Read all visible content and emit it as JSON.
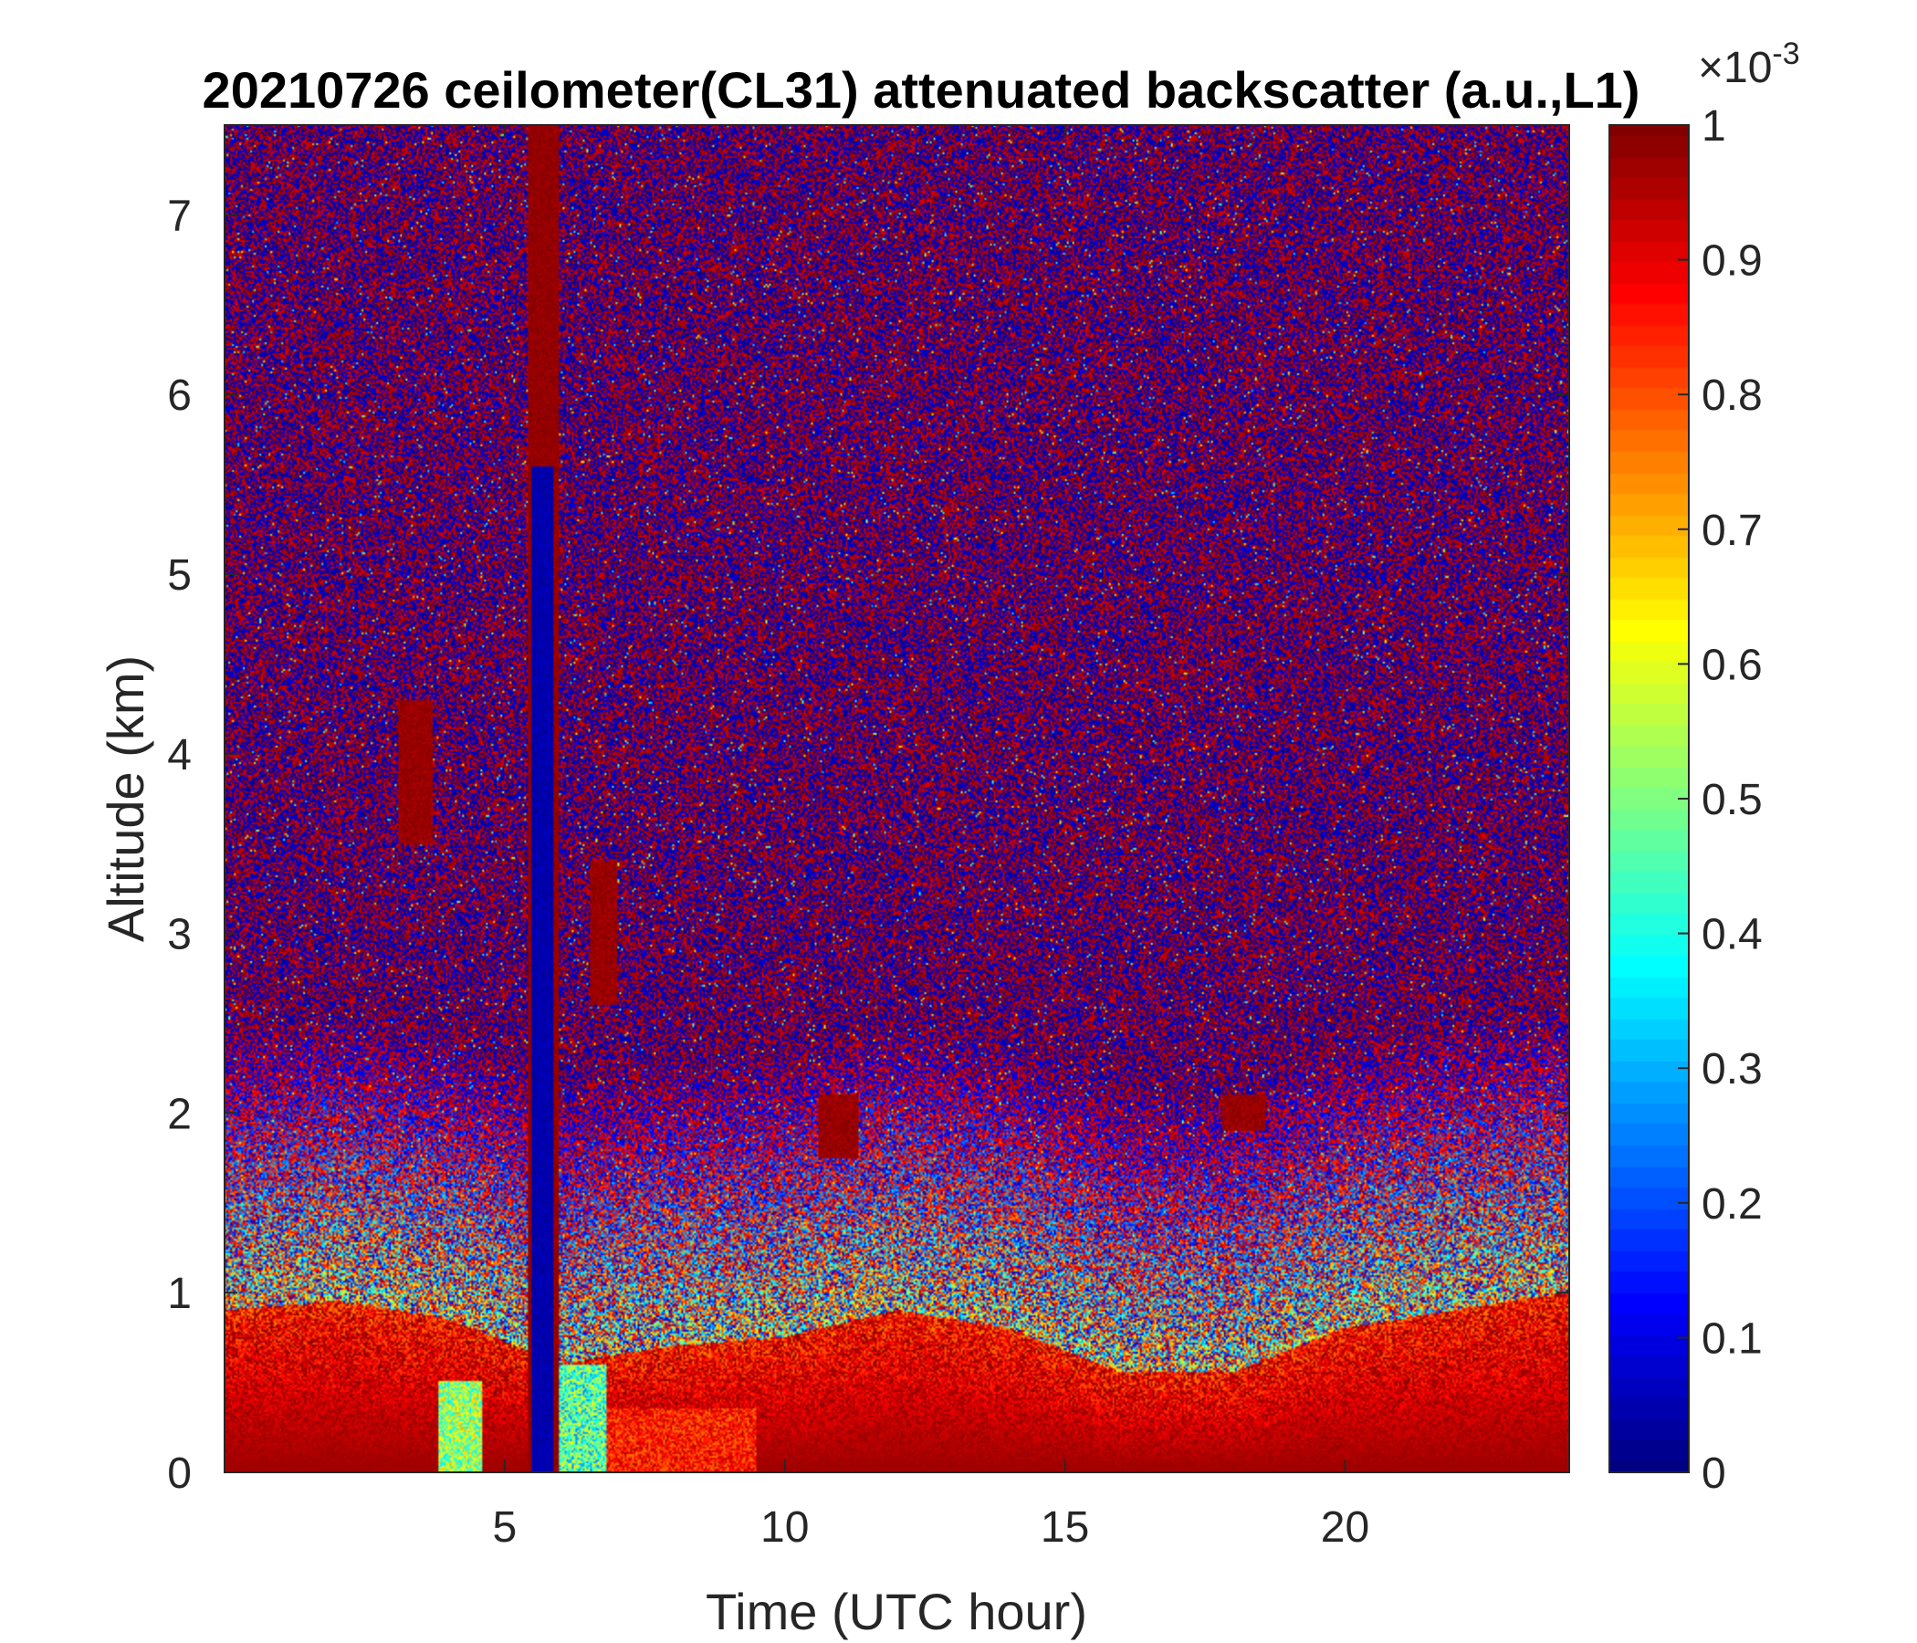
{
  "chart_data": {
    "type": "heatmap",
    "title": "20210726 ceilometer(CL31) attenuated backscatter (a.u.,L1)",
    "xlabel": "Time (UTC hour)",
    "ylabel": "Altitude (km)",
    "xlim": [
      0,
      24
    ],
    "ylim": [
      0,
      7.5
    ],
    "x_ticks": [
      5,
      10,
      15,
      20
    ],
    "y_ticks": [
      0,
      1,
      2,
      3,
      4,
      5,
      6,
      7
    ],
    "colorbar": {
      "range": [
        0,
        1
      ],
      "ticks": [
        0,
        0.1,
        0.2,
        0.3,
        0.4,
        0.5,
        0.6,
        0.7,
        0.8,
        0.9,
        1
      ],
      "tick_labels": [
        "0",
        "0.1",
        "0.2",
        "0.3",
        "0.4",
        "0.5",
        "0.6",
        "0.7",
        "0.8",
        "0.9",
        "1"
      ],
      "exponent_base": "×10",
      "exponent_power": "-3",
      "colormap": "jet"
    },
    "features": [
      {
        "name": "boundary layer",
        "x": [
          0,
          24
        ],
        "y_top": [
          0.9,
          0.95,
          0.85,
          0.6,
          0.7,
          0.75,
          0.9,
          0.8,
          0.55,
          0.55,
          0.8,
          0.9,
          1.0
        ]
      },
      {
        "name": "precipitation column",
        "x": [
          5.4,
          5.95
        ],
        "y": [
          0,
          7.5
        ]
      },
      {
        "name": "cloud",
        "x": [
          3.1,
          3.7
        ],
        "y": [
          3.5,
          4.3
        ]
      },
      {
        "name": "cloud",
        "x": [
          10.6,
          11.3
        ],
        "y": [
          1.75,
          2.1
        ]
      },
      {
        "name": "cloud",
        "x": [
          6.5,
          7.0
        ],
        "y": [
          2.6,
          3.4
        ]
      },
      {
        "name": "cloud",
        "x": [
          17.8,
          18.6
        ],
        "y": [
          1.9,
          2.1
        ]
      }
    ],
    "grid": false
  }
}
